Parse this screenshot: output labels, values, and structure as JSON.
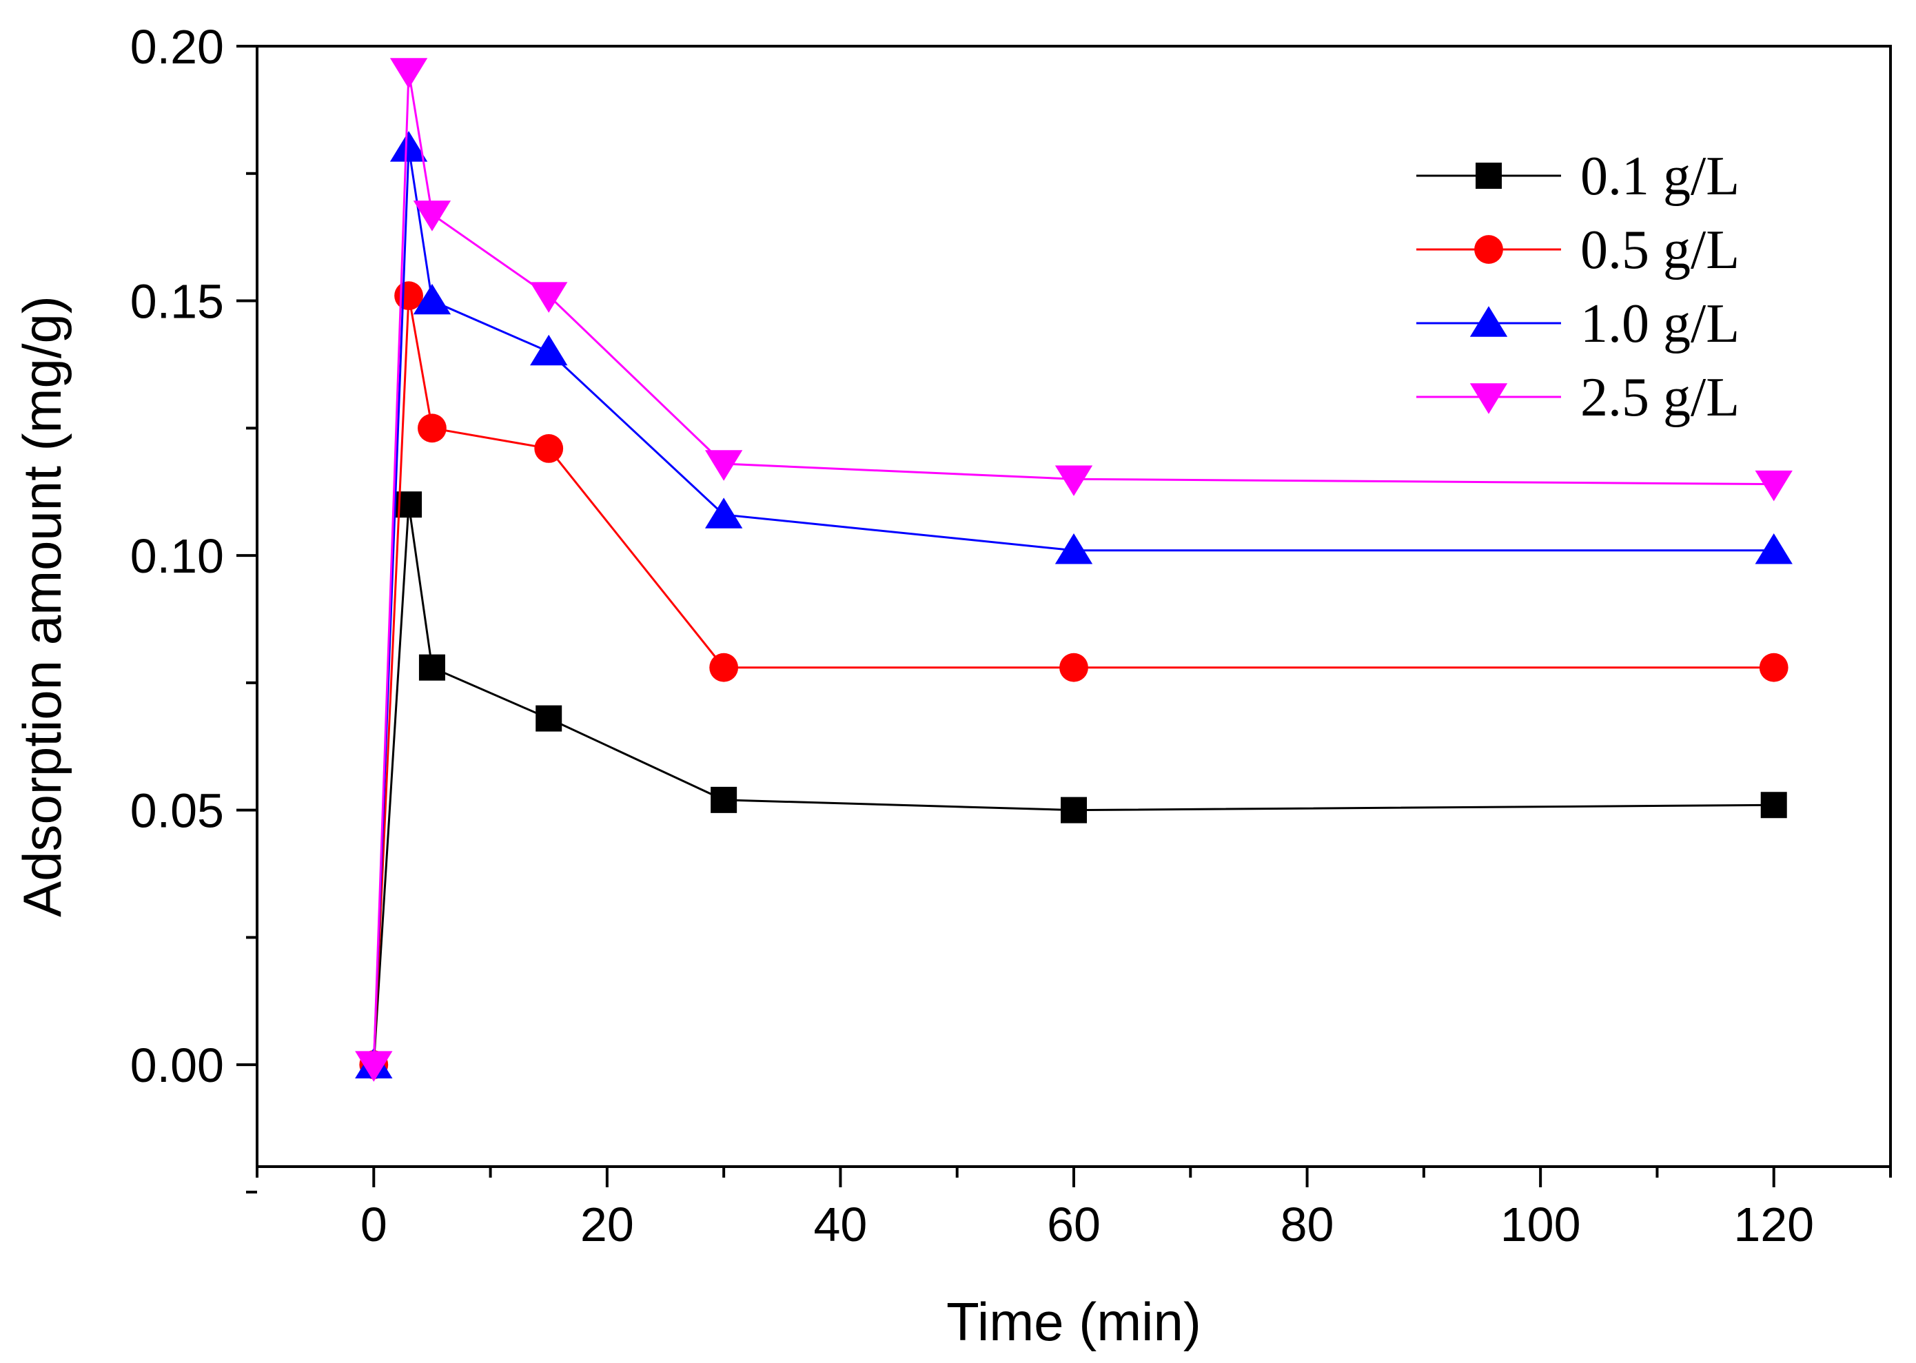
{
  "chart_data": {
    "type": "line",
    "title": "",
    "xlabel": "Time (min)",
    "ylabel": "Adsorption amount (mg/g)",
    "xlim": [
      -10,
      130
    ],
    "ylim": [
      -0.02,
      0.2
    ],
    "x_ticks": [
      0,
      20,
      40,
      60,
      80,
      100,
      120
    ],
    "x_tick_labels": [
      "0",
      "20",
      "40",
      "60",
      "80",
      "100",
      "120"
    ],
    "x_minor_ticks": [
      -10,
      10,
      30,
      50,
      70,
      90,
      110,
      130
    ],
    "y_ticks": [
      0.0,
      0.05,
      0.1,
      0.15,
      0.2
    ],
    "y_tick_labels": [
      "0.00",
      "0.05",
      "0.10",
      "0.15",
      "0.20"
    ],
    "y_minor_ticks": [
      -0.025,
      0.025,
      0.075,
      0.125,
      0.175
    ],
    "x": [
      0,
      3,
      5,
      15,
      30,
      60,
      120
    ],
    "legend_position": "top-right",
    "grid": false,
    "series": [
      {
        "name": "0.1 g/L",
        "color": "#000000",
        "marker": "square",
        "values": [
          0.0,
          0.11,
          0.078,
          0.068,
          0.052,
          0.05,
          0.051
        ]
      },
      {
        "name": "0.5 g/L",
        "color": "#ff0000",
        "marker": "circle",
        "values": [
          0.0,
          0.151,
          0.125,
          0.121,
          0.078,
          0.078,
          0.078
        ]
      },
      {
        "name": "1.0 g/L",
        "color": "#0000ff",
        "marker": "triangle-up",
        "values": [
          0.0,
          0.18,
          0.15,
          0.14,
          0.108,
          0.101,
          0.101
        ]
      },
      {
        "name": "2.5 g/L",
        "color": "#ff00ff",
        "marker": "triangle-down",
        "values": [
          0.0,
          0.195,
          0.167,
          0.151,
          0.118,
          0.115,
          0.114
        ]
      }
    ]
  }
}
